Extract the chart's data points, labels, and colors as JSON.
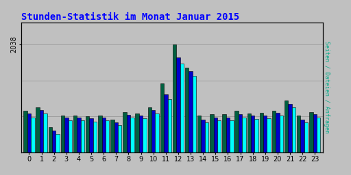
{
  "title": "Stunden-Statistik im Monat Januar 2015",
  "ylabel_right": "Seiten / Dateien / Anfragen",
  "ytick_label": "2038",
  "hours": [
    0,
    1,
    2,
    3,
    4,
    5,
    6,
    7,
    8,
    9,
    10,
    11,
    12,
    13,
    14,
    15,
    16,
    17,
    18,
    19,
    20,
    21,
    22,
    23
  ],
  "seiten": [
    780,
    850,
    480,
    700,
    700,
    680,
    690,
    620,
    760,
    740,
    850,
    1300,
    2038,
    1600,
    700,
    720,
    720,
    790,
    740,
    750,
    790,
    980,
    690,
    760
  ],
  "dateien": [
    730,
    800,
    410,
    650,
    650,
    640,
    650,
    570,
    710,
    700,
    800,
    1100,
    1800,
    1540,
    620,
    660,
    660,
    720,
    690,
    700,
    750,
    910,
    620,
    720
  ],
  "anfragen": [
    650,
    740,
    350,
    600,
    600,
    580,
    600,
    520,
    650,
    640,
    740,
    1000,
    1680,
    1440,
    570,
    600,
    600,
    660,
    630,
    640,
    690,
    850,
    570,
    660
  ],
  "color_seiten": "#006040",
  "color_dateien": "#0000CC",
  "color_anfragen": "#00FFFF",
  "bg_color": "#C0C0C0",
  "title_color": "#0000FF",
  "ylabel_right_color": "#00AA88",
  "grid_color": "#A0A0A0",
  "ylim_max": 2450,
  "bar_width": 0.3,
  "title_fontsize": 10,
  "tick_fontsize": 7
}
